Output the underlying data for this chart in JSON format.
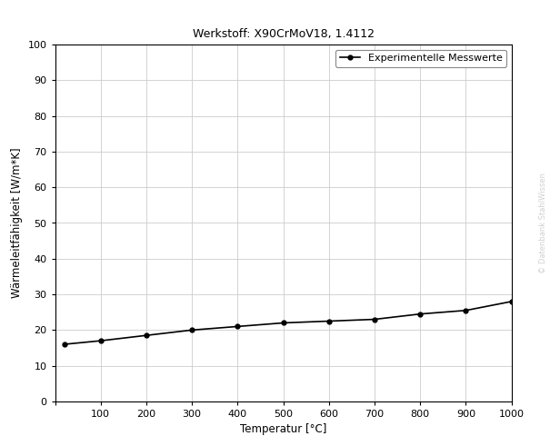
{
  "title": "Werkstoff: X90CrMoV18, 1.4112",
  "xlabel": "Temperatur [°C]",
  "ylabel": "Wärmeleitfähigkeit [W/m*K]",
  "legend_label": "Experimentelle Messwerte",
  "watermark": "© Datenbank StahlWissen",
  "x_data": [
    20,
    100,
    200,
    300,
    400,
    500,
    600,
    700,
    800,
    900,
    1000
  ],
  "y_data": [
    16.0,
    17.0,
    18.5,
    20.0,
    21.0,
    22.0,
    22.5,
    23.0,
    24.5,
    25.5,
    28.0
  ],
  "xlim": [
    0,
    1000
  ],
  "ylim": [
    0,
    100
  ],
  "xticks": [
    0,
    100,
    200,
    300,
    400,
    500,
    600,
    700,
    800,
    900,
    1000
  ],
  "yticks": [
    0,
    10,
    20,
    30,
    40,
    50,
    60,
    70,
    80,
    90,
    100
  ],
  "line_color": "#000000",
  "marker": "o",
  "marker_size": 3.5,
  "line_width": 1.2,
  "grid_color": "#cccccc",
  "background_color": "#ffffff",
  "title_fontsize": 9,
  "label_fontsize": 8.5,
  "tick_fontsize": 8,
  "legend_fontsize": 8,
  "watermark_color": "#d0d0d0",
  "watermark_fontsize": 6
}
